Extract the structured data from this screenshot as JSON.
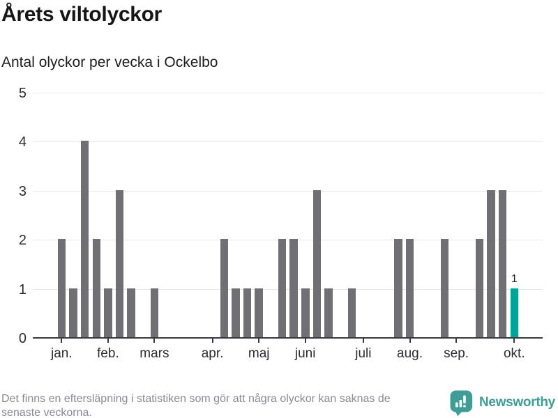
{
  "chart_data": {
    "type": "bar",
    "title": "Årets viltolyckor",
    "subtitle": "Antal olyckor per vecka i Ockelbo",
    "x_unit": "week",
    "values": [
      2,
      1,
      4,
      2,
      1,
      3,
      1,
      0,
      1,
      0,
      0,
      0,
      0,
      0,
      2,
      1,
      1,
      1,
      0,
      2,
      2,
      1,
      3,
      1,
      0,
      1,
      0,
      0,
      0,
      2,
      2,
      0,
      0,
      2,
      0,
      0,
      2,
      3,
      3,
      1
    ],
    "highlight": {
      "index": 39,
      "label": "1"
    },
    "y_ticks": [
      0,
      1,
      2,
      3,
      4,
      5
    ],
    "ylim": [
      0,
      5
    ],
    "month_ticks": [
      {
        "label": "jan.",
        "week": 1
      },
      {
        "label": "feb.",
        "week": 5
      },
      {
        "label": "mars",
        "week": 9
      },
      {
        "label": "apr.",
        "week": 14
      },
      {
        "label": "maj",
        "week": 18
      },
      {
        "label": "juni",
        "week": 22
      },
      {
        "label": "juli",
        "week": 27
      },
      {
        "label": "aug.",
        "week": 31
      },
      {
        "label": "sep.",
        "week": 35
      },
      {
        "label": "okt.",
        "week": 40
      }
    ],
    "grid": "horizontal",
    "legend": "none"
  },
  "footer": {
    "line1": "Det finns en eftersläpning i statistiken som gör att några olyckor kan saknas de",
    "line2": "senaste veckorna."
  },
  "logo": {
    "brand": "Newsworthy",
    "icon": "newsworthy-bubble-chart-icon"
  },
  "colors": {
    "bar": "#6f6f74",
    "highlight": "#00a399",
    "grid": "#e8e8e8",
    "axis": "#3a3a3e",
    "logo": "#3f9d96",
    "title_text": "#161616",
    "footer_text": "#8a8a92"
  }
}
